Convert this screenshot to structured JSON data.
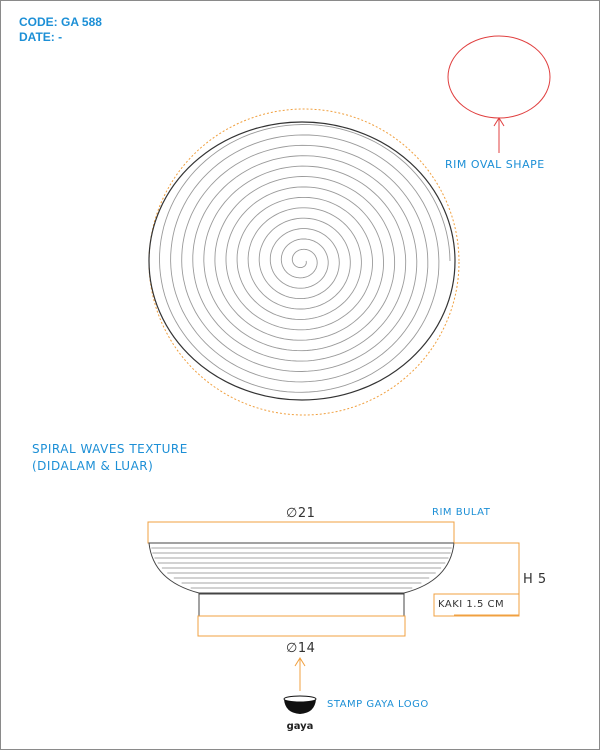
{
  "header": {
    "code": "CODE: GA 588",
    "date": "DATE: -"
  },
  "annotations": {
    "rim_oval_shape": "RIM OVAL SHAPE",
    "texture_line1": "SPIRAL WAVES TEXTURE",
    "texture_line2": "(DIDALAM & LUAR)",
    "rim_bulat": "RIM BULAT",
    "rim_diameter": "∅21",
    "height": "H 5",
    "kaki": "KAKI 1.5 CM",
    "foot_diameter": "∅14",
    "stamp": "STAMP GAYA LOGO",
    "logo_text": "gaya"
  },
  "colors": {
    "accent_blue": "#1c8fd6",
    "orange": "#f0a040",
    "red": "#e04040",
    "line": "#555555"
  },
  "icons": {
    "logo": "gaya-bowl-logo-icon"
  }
}
